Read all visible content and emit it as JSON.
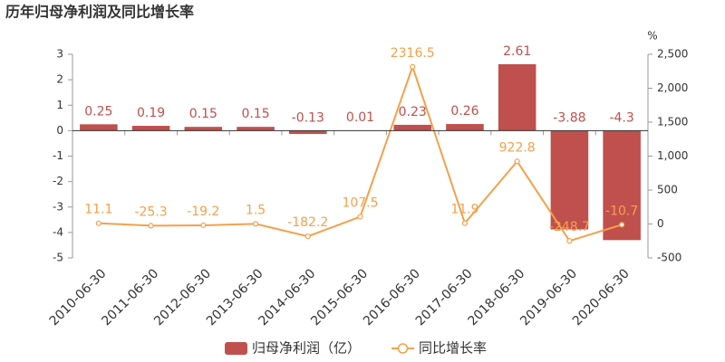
{
  "chart_data": {
    "type": "bar-line",
    "title": "历年归母净利润及同比增长率",
    "categories": [
      "2010-06-30",
      "2011-06-30",
      "2012-06-30",
      "2013-06-30",
      "2014-06-30",
      "2015-06-30",
      "2016-06-30",
      "2017-06-30",
      "2018-06-30",
      "2019-06-30",
      "2020-06-30"
    ],
    "series": [
      {
        "name": "归母净利润（亿）",
        "type": "bar",
        "color": "#c0504d",
        "values": [
          0.25,
          0.19,
          0.15,
          0.15,
          -0.13,
          0.01,
          0.23,
          0.26,
          2.61,
          -3.88,
          -4.3
        ]
      },
      {
        "name": "同比增长率",
        "type": "line",
        "axis": "y2",
        "color": "#f5a04a",
        "values": [
          11.1,
          -25.3,
          -19.2,
          1.5,
          -182.2,
          107.5,
          2316.5,
          11.9,
          922.8,
          -248.7,
          -10.7
        ]
      }
    ],
    "ylim": [
      -5,
      3
    ],
    "yticks": [
      -5,
      -4,
      -3,
      -2,
      -1,
      0,
      1,
      2,
      3
    ],
    "y2label": "%",
    "y2lim": [
      -500,
      2500
    ],
    "y2ticks": [
      -500,
      0,
      500,
      {
        "value": 1000,
        "label": "1,000"
      },
      {
        "value": 1500,
        "label": "1,500"
      },
      {
        "value": 2000,
        "label": "2,000"
      },
      {
        "value": 2500,
        "label": "2,500"
      }
    ],
    "grid": false
  }
}
